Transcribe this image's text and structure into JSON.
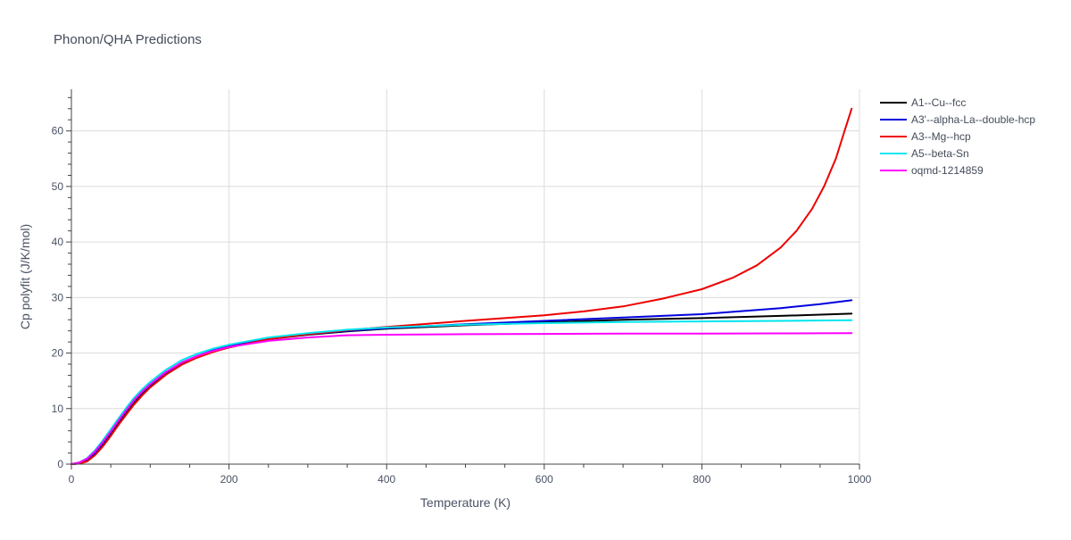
{
  "chart_data": {
    "type": "line",
    "title": "Phonon/QHA Predictions",
    "xlabel": "Temperature (K)",
    "ylabel": "Cp polyfit (J/K/mol)",
    "xlim": [
      0,
      1000
    ],
    "ylim": [
      0,
      67.5
    ],
    "x_ticks": [
      0,
      200,
      400,
      600,
      800,
      1000
    ],
    "y_ticks": [
      0,
      10,
      20,
      30,
      40,
      50,
      60
    ],
    "grid": true,
    "legend_position": "top-right",
    "series": [
      {
        "name": "A1--Cu--fcc",
        "color": "#000000",
        "x": [
          0,
          10,
          20,
          30,
          40,
          50,
          60,
          70,
          80,
          90,
          100,
          120,
          140,
          160,
          180,
          200,
          250,
          300,
          350,
          400,
          500,
          600,
          700,
          800,
          900,
          990
        ],
        "y": [
          0,
          0.1,
          0.6,
          1.7,
          3.4,
          5.3,
          7.3,
          9.2,
          11.0,
          12.6,
          14.0,
          16.3,
          18.0,
          19.3,
          20.3,
          21.0,
          22.5,
          23.3,
          23.9,
          24.4,
          25.0,
          25.5,
          26.0,
          26.3,
          26.7,
          27.1
        ]
      },
      {
        "name": "A3'--alpha-La--double-hcp",
        "color": "#0000dd",
        "x": [
          0,
          10,
          20,
          30,
          40,
          50,
          60,
          70,
          80,
          90,
          100,
          120,
          140,
          160,
          180,
          200,
          250,
          300,
          350,
          400,
          500,
          600,
          700,
          800,
          900,
          950,
          990
        ],
        "y": [
          0,
          0.2,
          0.8,
          2.0,
          3.8,
          5.8,
          7.8,
          9.7,
          11.5,
          13.0,
          14.3,
          16.5,
          18.2,
          19.5,
          20.5,
          21.2,
          22.6,
          23.4,
          24.0,
          24.5,
          25.2,
          25.8,
          26.4,
          27.0,
          28.1,
          28.8,
          29.5
        ]
      },
      {
        "name": "A3--Mg--hcp",
        "color": "#ee0000",
        "x": [
          0,
          10,
          20,
          30,
          40,
          50,
          60,
          70,
          80,
          90,
          100,
          120,
          140,
          160,
          180,
          200,
          250,
          300,
          350,
          400,
          500,
          600,
          650,
          700,
          750,
          800,
          840,
          870,
          900,
          920,
          940,
          955,
          970,
          980,
          990
        ],
        "y": [
          0,
          0.1,
          0.5,
          1.6,
          3.2,
          5.1,
          7.1,
          9.0,
          10.8,
          12.4,
          13.8,
          16.1,
          17.9,
          19.2,
          20.2,
          21.0,
          22.5,
          23.4,
          24.1,
          24.7,
          25.8,
          26.8,
          27.5,
          28.4,
          29.8,
          31.5,
          33.6,
          35.8,
          39.0,
          42.0,
          46.0,
          50.0,
          55.0,
          59.5,
          64.0
        ]
      },
      {
        "name": "A5--beta-Sn",
        "color": "#00e5ee",
        "x": [
          0,
          10,
          20,
          30,
          40,
          50,
          60,
          70,
          80,
          90,
          100,
          120,
          140,
          160,
          180,
          200,
          250,
          300,
          350,
          400,
          500,
          600,
          700,
          800,
          900,
          990
        ],
        "y": [
          0,
          0.3,
          1.1,
          2.5,
          4.3,
          6.3,
          8.3,
          10.2,
          12.0,
          13.5,
          14.8,
          17.0,
          18.7,
          19.9,
          20.8,
          21.5,
          22.8,
          23.6,
          24.2,
          24.6,
          25.1,
          25.4,
          25.6,
          25.7,
          25.8,
          25.9
        ]
      },
      {
        "name": "oqmd-1214859",
        "color": "#ff00ff",
        "x": [
          0,
          10,
          20,
          30,
          40,
          50,
          60,
          70,
          80,
          90,
          100,
          120,
          140,
          160,
          180,
          200,
          250,
          300,
          350,
          400,
          500,
          600,
          700,
          800,
          900,
          990
        ],
        "y": [
          0,
          0.3,
          1.0,
          2.3,
          4.0,
          5.9,
          7.9,
          9.8,
          11.6,
          13.1,
          14.4,
          16.6,
          18.3,
          19.5,
          20.4,
          21.1,
          22.2,
          22.8,
          23.2,
          23.3,
          23.4,
          23.45,
          23.5,
          23.5,
          23.55,
          23.6
        ]
      }
    ]
  }
}
